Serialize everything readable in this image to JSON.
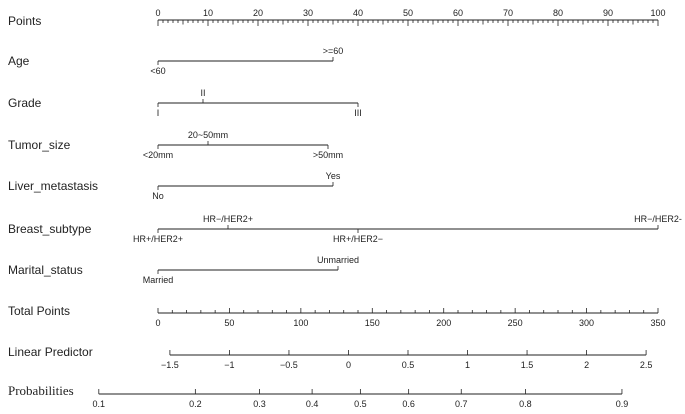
{
  "chart_data": {
    "type": "nomogram",
    "points_scale": {
      "label": "Points",
      "range": [
        0,
        100
      ],
      "major_ticks": [
        0,
        10,
        20,
        30,
        40,
        50,
        60,
        70,
        80,
        90,
        100
      ],
      "tick_labels": [
        "0",
        "10",
        "20",
        "30",
        "40",
        "50",
        "60",
        "70",
        "80",
        "90",
        "100"
      ]
    },
    "variables": [
      {
        "label": "Age",
        "range": [
          0,
          35
        ],
        "levels": [
          {
            "label": "<60",
            "points": 0,
            "side": "below"
          },
          {
            "label": ">=60",
            "points": 35,
            "side": "above"
          }
        ]
      },
      {
        "label": "Grade",
        "range": [
          0,
          40
        ],
        "levels": [
          {
            "label": "I",
            "points": 0,
            "side": "below"
          },
          {
            "label": "II",
            "points": 9,
            "side": "above"
          },
          {
            "label": "III",
            "points": 40,
            "side": "below"
          }
        ]
      },
      {
        "label": "Tumor_size",
        "range": [
          0,
          34
        ],
        "levels": [
          {
            "label": "<20mm",
            "points": 0,
            "side": "below"
          },
          {
            "label": "20~50mm",
            "points": 10,
            "side": "above"
          },
          {
            "label": ">50mm",
            "points": 34,
            "side": "below"
          }
        ]
      },
      {
        "label": "Liver_metastasis",
        "range": [
          0,
          35
        ],
        "levels": [
          {
            "label": "No",
            "points": 0,
            "side": "below"
          },
          {
            "label": "Yes",
            "points": 35,
            "side": "above"
          }
        ]
      },
      {
        "label": "Breast_subtype",
        "range": [
          0,
          100
        ],
        "levels": [
          {
            "label": "HR+/HER2+",
            "points": 0,
            "side": "below"
          },
          {
            "label": "HR−/HER2+",
            "points": 14,
            "side": "above"
          },
          {
            "label": "HR+/HER2−",
            "points": 40,
            "side": "below"
          },
          {
            "label": "HR−/HER2-",
            "points": 100,
            "side": "above"
          }
        ]
      },
      {
        "label": "Marital_status",
        "range": [
          0,
          36
        ],
        "levels": [
          {
            "label": "Married",
            "points": 0,
            "side": "below"
          },
          {
            "label": "Unmarried",
            "points": 36,
            "side": "above"
          }
        ]
      }
    ],
    "total_points": {
      "label": "Total Points",
      "range": [
        0,
        350
      ],
      "major_ticks": [
        0,
        50,
        100,
        150,
        200,
        250,
        300,
        350
      ],
      "tick_labels": [
        "0",
        "50",
        "100",
        "150",
        "200",
        "250",
        "300",
        "350"
      ]
    },
    "linear_predictor": {
      "label": "Linear Predictor",
      "range": [
        -1.6,
        2.6
      ],
      "axis_extent": [
        -1.5,
        2.5
      ],
      "major_ticks": [
        -1.5,
        -1,
        -0.5,
        0,
        0.5,
        1,
        1.5,
        2,
        2.5
      ],
      "tick_labels": [
        "−1.5",
        "−1",
        "−0.5",
        "0",
        "0.5",
        "1",
        "1.5",
        "2",
        "2.5"
      ]
    },
    "probabilities": {
      "label": "Probabilities",
      "ticks": [
        0.9,
        0.8,
        0.7,
        0.6,
        0.5,
        0.4,
        0.3,
        0.2,
        0.1
      ],
      "tick_labels": [
        "0.9",
        "0.8",
        "0.7",
        "0.6",
        "0.5",
        "0.4",
        "0.3",
        "0.2",
        "0.1"
      ],
      "logit_offset": 0.1
    }
  }
}
